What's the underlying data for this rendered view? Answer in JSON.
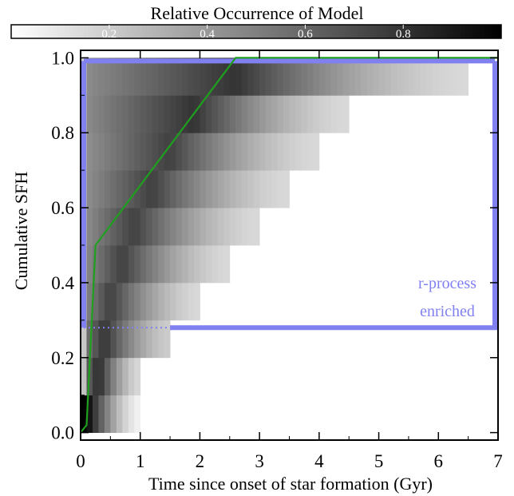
{
  "chart_data": {
    "type": "heatmap",
    "colorbar": {
      "title": "Relative Occurrence of Model",
      "ticks": [
        "0.2",
        "0.4",
        "0.6",
        "0.8"
      ],
      "range": [
        0,
        1
      ],
      "colormap": "white-to-black grayscale"
    },
    "xlabel": "Time since onset of star formation (Gyr)",
    "ylabel": "Cumulative SFH",
    "xlim": [
      0,
      7
    ],
    "ylim": [
      -0.02,
      1.02
    ],
    "xticks": [
      "0",
      "1",
      "2",
      "3",
      "4",
      "5",
      "6",
      "7"
    ],
    "yticks": [
      "0.0",
      "0.2",
      "0.4",
      "0.6",
      "0.8",
      "1.0"
    ],
    "heatmap_rows": [
      {
        "y0": 0.0,
        "y1": 0.1,
        "x_end": 1.0,
        "x_peak": 0.1,
        "peak": 1.0,
        "tail": 0.05
      },
      {
        "y0": 0.1,
        "y1": 0.2,
        "x_end": 1.0,
        "x_peak": 0.3,
        "peak": 0.85,
        "tail": 0.15
      },
      {
        "y0": 0.2,
        "y1": 0.3,
        "x_end": 1.5,
        "x_peak": 0.4,
        "peak": 0.8,
        "tail": 0.2
      },
      {
        "y0": 0.3,
        "y1": 0.4,
        "x_end": 2.0,
        "x_peak": 0.5,
        "peak": 0.75,
        "tail": 0.15
      },
      {
        "y0": 0.4,
        "y1": 0.5,
        "x_end": 2.5,
        "x_peak": 0.7,
        "peak": 0.75,
        "tail": 0.15
      },
      {
        "y0": 0.5,
        "y1": 0.6,
        "x_end": 3.0,
        "x_peak": 0.9,
        "peak": 0.75,
        "tail": 0.15
      },
      {
        "y0": 0.6,
        "y1": 0.7,
        "x_end": 3.5,
        "x_peak": 1.2,
        "peak": 0.75,
        "tail": 0.15
      },
      {
        "y0": 0.7,
        "y1": 0.8,
        "x_end": 4.0,
        "x_peak": 1.5,
        "peak": 0.75,
        "tail": 0.15
      },
      {
        "y0": 0.8,
        "y1": 0.9,
        "x_end": 4.5,
        "x_peak": 1.9,
        "peak": 0.8,
        "tail": 0.15
      },
      {
        "y0": 0.9,
        "y1": 1.0,
        "x_end": 6.5,
        "x_peak": 2.6,
        "peak": 0.8,
        "tail": 0.15
      }
    ],
    "series": [
      {
        "color": "#1ea01e",
        "x": [
          0.0,
          0.1,
          0.25,
          2.6,
          7.0
        ],
        "y": [
          0.0,
          0.02,
          0.5,
          1.0,
          1.0
        ]
      }
    ],
    "region": {
      "label": [
        "r-process",
        "enriched"
      ],
      "color": "#8080f0",
      "x": [
        0.0,
        7.0
      ],
      "y": [
        0.28,
        1.0
      ],
      "dotted_lower_x": [
        0.0,
        1.5
      ]
    }
  }
}
